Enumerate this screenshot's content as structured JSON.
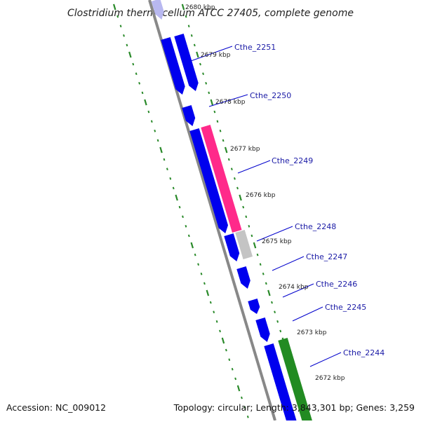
{
  "title": "Clostridium thermocellum ATCC 27405, complete genome",
  "footer": {
    "accession": "Accession: NC_009012",
    "summary": "Topology: circular; Length: 3,843,301 bp; Genes: 3,259"
  },
  "colors": {
    "backbone": "#888888",
    "forward_gene": "#0000ee",
    "partial_gene": "#b8b8f0",
    "magenta_gene": "#ff2a8a",
    "grey_gene": "#c4c4c4",
    "green_gene": "#228b22",
    "tick": "#2a8a2a",
    "leader": "#0000cc"
  },
  "kbp_marks": [
    "2680 kbp",
    "2679 kbp",
    "2678 kbp",
    "2677 kbp",
    "2676 kbp",
    "2675 kbp",
    "2674 kbp",
    "2673 kbp",
    "2672 kbp"
  ],
  "gene_labels": [
    "Cthe_2251",
    "Cthe_2250",
    "Cthe_2249",
    "Cthe_2248",
    "Cthe_2247",
    "Cthe_2246",
    "Cthe_2245",
    "Cthe_2244"
  ]
}
